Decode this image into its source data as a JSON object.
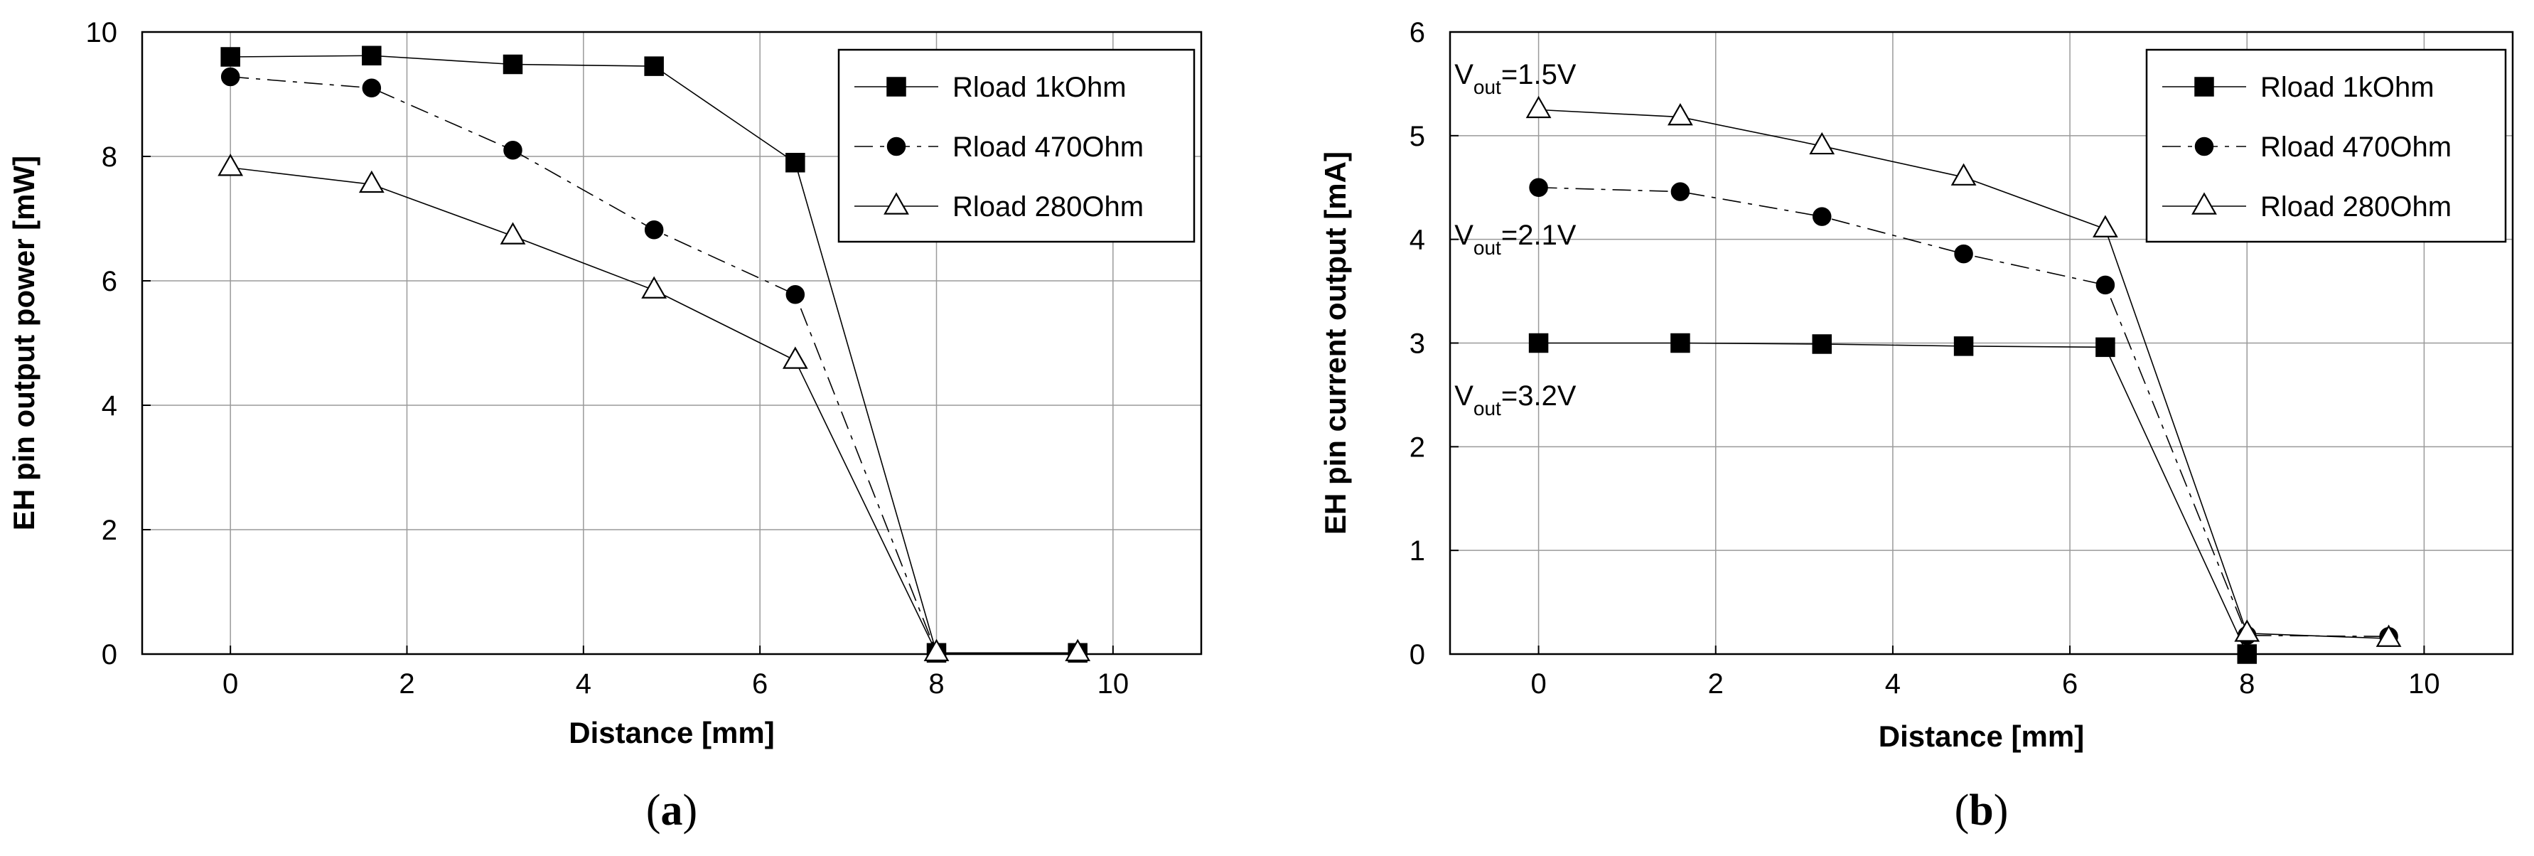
{
  "chart_data": [
    {
      "type": "line",
      "caption_label": "a",
      "title": "",
      "xlabel": "Distance [mm]",
      "ylabel": "EH pin output power [mW]",
      "xlim": [
        -1,
        11
      ],
      "ylim": [
        0,
        10
      ],
      "xticks": [
        0,
        2,
        4,
        6,
        8,
        10
      ],
      "yticks": [
        0,
        2,
        4,
        6,
        8,
        10
      ],
      "grid": true,
      "legend_position": "top-right",
      "series": [
        {
          "name": "Rload 1kOhm",
          "marker": "square",
          "line": "solid",
          "x": [
            0,
            1.6,
            3.2,
            4.8,
            6.4,
            8,
            9.6
          ],
          "values": [
            9.6,
            9.62,
            9.48,
            9.45,
            7.9,
            0.02,
            0.02
          ]
        },
        {
          "name": "Rload 470Ohm",
          "marker": "circle",
          "line": "dashdot",
          "x": [
            0,
            1.6,
            3.2,
            4.8,
            6.4,
            8,
            9.6
          ],
          "values": [
            9.28,
            9.1,
            8.1,
            6.82,
            5.78,
            0.02,
            0.02
          ]
        },
        {
          "name": "Rload 280Ohm",
          "marker": "triangle",
          "line": "solid",
          "x": [
            0,
            1.6,
            3.2,
            4.8,
            6.4,
            8,
            9.6
          ],
          "values": [
            7.82,
            7.55,
            6.72,
            5.85,
            4.72,
            0.02,
            0.02
          ]
        }
      ],
      "annotations": []
    },
    {
      "type": "line",
      "caption_label": "b",
      "title": "",
      "xlabel": "Distance [mm]",
      "ylabel": "EH pin current output [mA]",
      "xlim": [
        -1,
        11
      ],
      "ylim": [
        0,
        6
      ],
      "xticks": [
        0,
        2,
        4,
        6,
        8,
        10
      ],
      "yticks": [
        0,
        1,
        2,
        3,
        4,
        5,
        6
      ],
      "grid": true,
      "legend_position": "top-right",
      "series": [
        {
          "name": "Rload 1kOhm",
          "marker": "square",
          "line": "solid",
          "x": [
            0,
            1.6,
            3.2,
            4.8,
            6.4,
            8
          ],
          "values": [
            3.0,
            3.0,
            2.99,
            2.97,
            2.96,
            0.0
          ]
        },
        {
          "name": "Rload 470Ohm",
          "marker": "circle",
          "line": "dashdot",
          "x": [
            0,
            1.6,
            3.2,
            4.8,
            6.4,
            8,
            9.6
          ],
          "values": [
            4.5,
            4.46,
            4.22,
            3.86,
            3.56,
            0.18,
            0.17
          ]
        },
        {
          "name": "Rload 280Ohm",
          "marker": "triangle",
          "line": "solid",
          "x": [
            0,
            1.6,
            3.2,
            4.8,
            6.4,
            8,
            9.6
          ],
          "values": [
            5.25,
            5.18,
            4.9,
            4.6,
            4.1,
            0.2,
            0.15
          ]
        }
      ],
      "annotations": [
        {
          "main": "V",
          "sub": "out",
          "rest": "=1.5V",
          "x": -0.95,
          "y": 5.5
        },
        {
          "main": "V",
          "sub": "out",
          "rest": "=2.1V",
          "x": -0.95,
          "y": 3.95
        },
        {
          "main": "V",
          "sub": "out",
          "rest": "=3.2V",
          "x": -0.95,
          "y": 2.4
        }
      ]
    }
  ]
}
